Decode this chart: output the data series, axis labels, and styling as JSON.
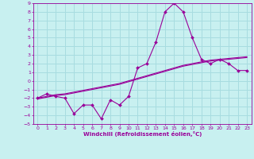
{
  "xlabel": "Windchill (Refroidissement éolien,°C)",
  "bg_color": "#c8f0f0",
  "grid_color": "#a8dce0",
  "line_color": "#990099",
  "xlim": [
    -0.5,
    23.5
  ],
  "ylim": [
    -5,
    9
  ],
  "xticks": [
    0,
    1,
    2,
    3,
    4,
    5,
    6,
    7,
    8,
    9,
    10,
    11,
    12,
    13,
    14,
    15,
    16,
    17,
    18,
    19,
    20,
    21,
    22,
    23
  ],
  "yticks": [
    -5,
    -4,
    -3,
    -2,
    -1,
    0,
    1,
    2,
    3,
    4,
    5,
    6,
    7,
    8,
    9
  ],
  "x": [
    0,
    1,
    2,
    3,
    4,
    5,
    6,
    7,
    8,
    9,
    10,
    11,
    12,
    13,
    14,
    15,
    16,
    17,
    18,
    19,
    20,
    21,
    22,
    23
  ],
  "line1_y": [
    -2.0,
    -1.5,
    -1.8,
    -2.0,
    -3.8,
    -2.8,
    -2.8,
    -4.4,
    -2.2,
    -2.8,
    -1.8,
    1.5,
    2.0,
    4.5,
    8.0,
    9.0,
    8.0,
    5.0,
    2.5,
    2.0,
    2.5,
    2.0,
    1.2,
    1.2
  ],
  "line2_y": [
    -2.0,
    -1.8,
    -1.6,
    -1.5,
    -1.3,
    -1.1,
    -0.9,
    -0.7,
    -0.5,
    -0.3,
    0.0,
    0.3,
    0.6,
    0.9,
    1.2,
    1.5,
    1.8,
    2.0,
    2.2,
    2.4,
    2.5,
    2.6,
    2.7,
    2.8
  ],
  "line3_y": [
    -2.1,
    -1.9,
    -1.7,
    -1.6,
    -1.4,
    -1.2,
    -1.0,
    -0.8,
    -0.6,
    -0.4,
    -0.1,
    0.2,
    0.5,
    0.8,
    1.1,
    1.4,
    1.7,
    1.9,
    2.1,
    2.3,
    2.4,
    2.5,
    2.6,
    2.7
  ]
}
